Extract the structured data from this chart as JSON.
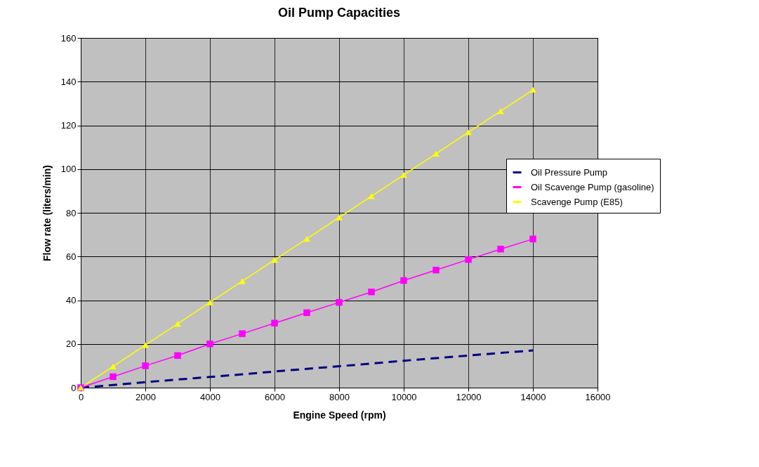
{
  "chart_data": {
    "type": "line",
    "title": "Oil Pump Capacities",
    "xlabel": "Engine Speed (rpm)",
    "ylabel": "Flow rate (liters/min)",
    "x": [
      0,
      1000,
      2000,
      3000,
      4000,
      5000,
      6000,
      7000,
      8000,
      9000,
      10000,
      11000,
      12000,
      13000,
      14000
    ],
    "xlim": [
      0,
      16000
    ],
    "xticks": [
      0,
      2000,
      4000,
      6000,
      8000,
      10000,
      12000,
      14000,
      16000
    ],
    "ylim": [
      0,
      160
    ],
    "yticks": [
      0,
      20,
      40,
      60,
      80,
      100,
      120,
      140,
      160
    ],
    "grid": true,
    "legend": "right",
    "series": [
      {
        "name": "Oil Pressure Pump",
        "color": "#000080",
        "line_style": "dashed",
        "marker": "none",
        "values": [
          0,
          1.2,
          2.5,
          3.7,
          4.9,
          6.1,
          7.4,
          8.6,
          9.8,
          11,
          12.3,
          13.5,
          14.7,
          15.9,
          17
        ]
      },
      {
        "name": "Oil Scavenge Pump (gasoline)",
        "color": "#ff00ff",
        "line_style": "solid",
        "marker": "square",
        "values": [
          0,
          5,
          10,
          14.7,
          20,
          24.7,
          29.5,
          34.3,
          39,
          43.8,
          49,
          53.8,
          58.6,
          63.4,
          68
        ]
      },
      {
        "name": "Scavenge Pump (E85)",
        "color": "#ffff00",
        "line_style": "solid",
        "marker": "triangle",
        "values": [
          0,
          9.7,
          19.5,
          29.2,
          39,
          48.7,
          58.4,
          68.1,
          77.9,
          87.6,
          97.3,
          107,
          116.8,
          126.5,
          136.3
        ]
      }
    ]
  }
}
